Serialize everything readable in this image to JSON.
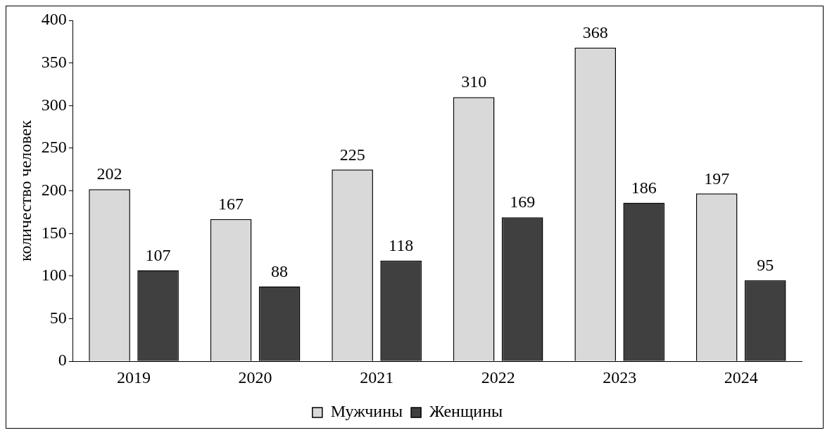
{
  "chart_data": {
    "type": "bar",
    "ylabel": "количество человек",
    "categories": [
      "2019",
      "2020",
      "2021",
      "2022",
      "2023",
      "2024"
    ],
    "series": [
      {
        "name": "Мужчины",
        "color": "#d9d9d9",
        "values": [
          202,
          167,
          225,
          310,
          368,
          197
        ]
      },
      {
        "name": "Женщины",
        "color": "#404040",
        "values": [
          107,
          88,
          118,
          169,
          186,
          95
        ]
      }
    ],
    "ylim": [
      0,
      400
    ],
    "yticks": [
      0,
      50,
      100,
      150,
      200,
      250,
      300,
      350,
      400
    ],
    "grid": false,
    "legend": "bottom",
    "data_labels": true
  }
}
